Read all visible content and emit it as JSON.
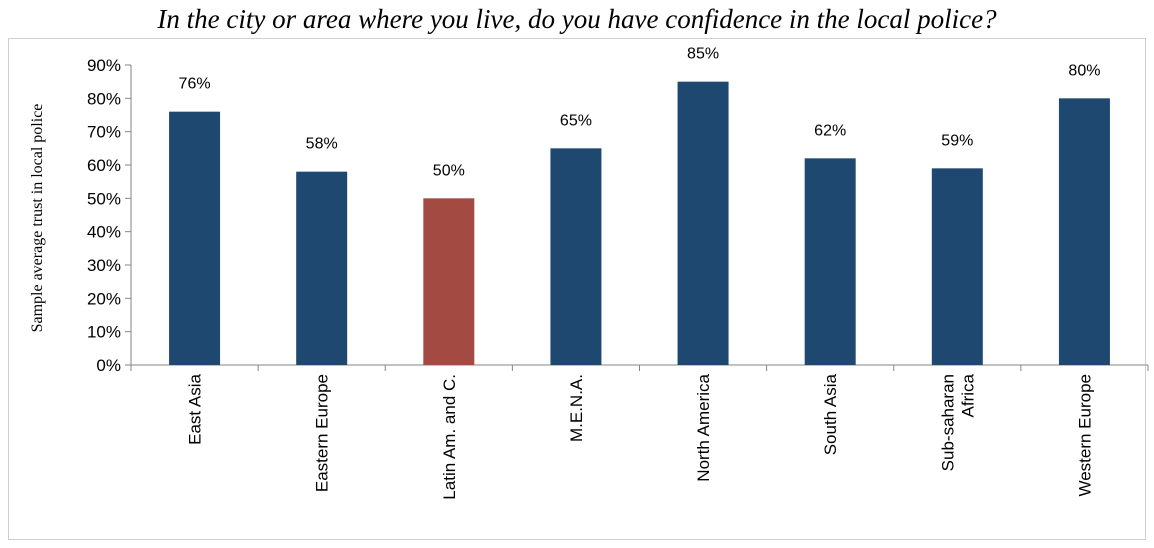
{
  "chart_data": {
    "type": "bar",
    "title": "In the city or area where you live, do you have confidence in the local police?",
    "xlabel": "",
    "ylabel": "Sample average trust in local police",
    "categories": [
      "East Asia",
      "Eastern Europe",
      "Latin Am. and C.",
      "M.E.N.A.",
      "North America",
      "South Asia",
      "Sub-saharan Africa",
      "Western Europe"
    ],
    "category_lines": [
      [
        "East Asia"
      ],
      [
        "Eastern Europe"
      ],
      [
        "Latin Am. and C."
      ],
      [
        "M.E.N.A."
      ],
      [
        "North America"
      ],
      [
        "South Asia"
      ],
      [
        "Sub-saharan",
        "Africa"
      ],
      [
        "Western Europe"
      ]
    ],
    "values": [
      76,
      58,
      50,
      65,
      85,
      62,
      59,
      80
    ],
    "data_labels": [
      "76%",
      "58%",
      "50%",
      "65%",
      "85%",
      "62%",
      "59%",
      "80%"
    ],
    "ylim": [
      0,
      90
    ],
    "yticks": [
      0,
      10,
      20,
      30,
      40,
      50,
      60,
      70,
      80,
      90
    ],
    "ytick_labels": [
      "0%",
      "10%",
      "20%",
      "30%",
      "40%",
      "50%",
      "60%",
      "70%",
      "80%",
      "90%"
    ],
    "grid": false,
    "colors": {
      "default": "#1F4871",
      "highlight": "#A34A43",
      "highlight_index": 2
    }
  }
}
